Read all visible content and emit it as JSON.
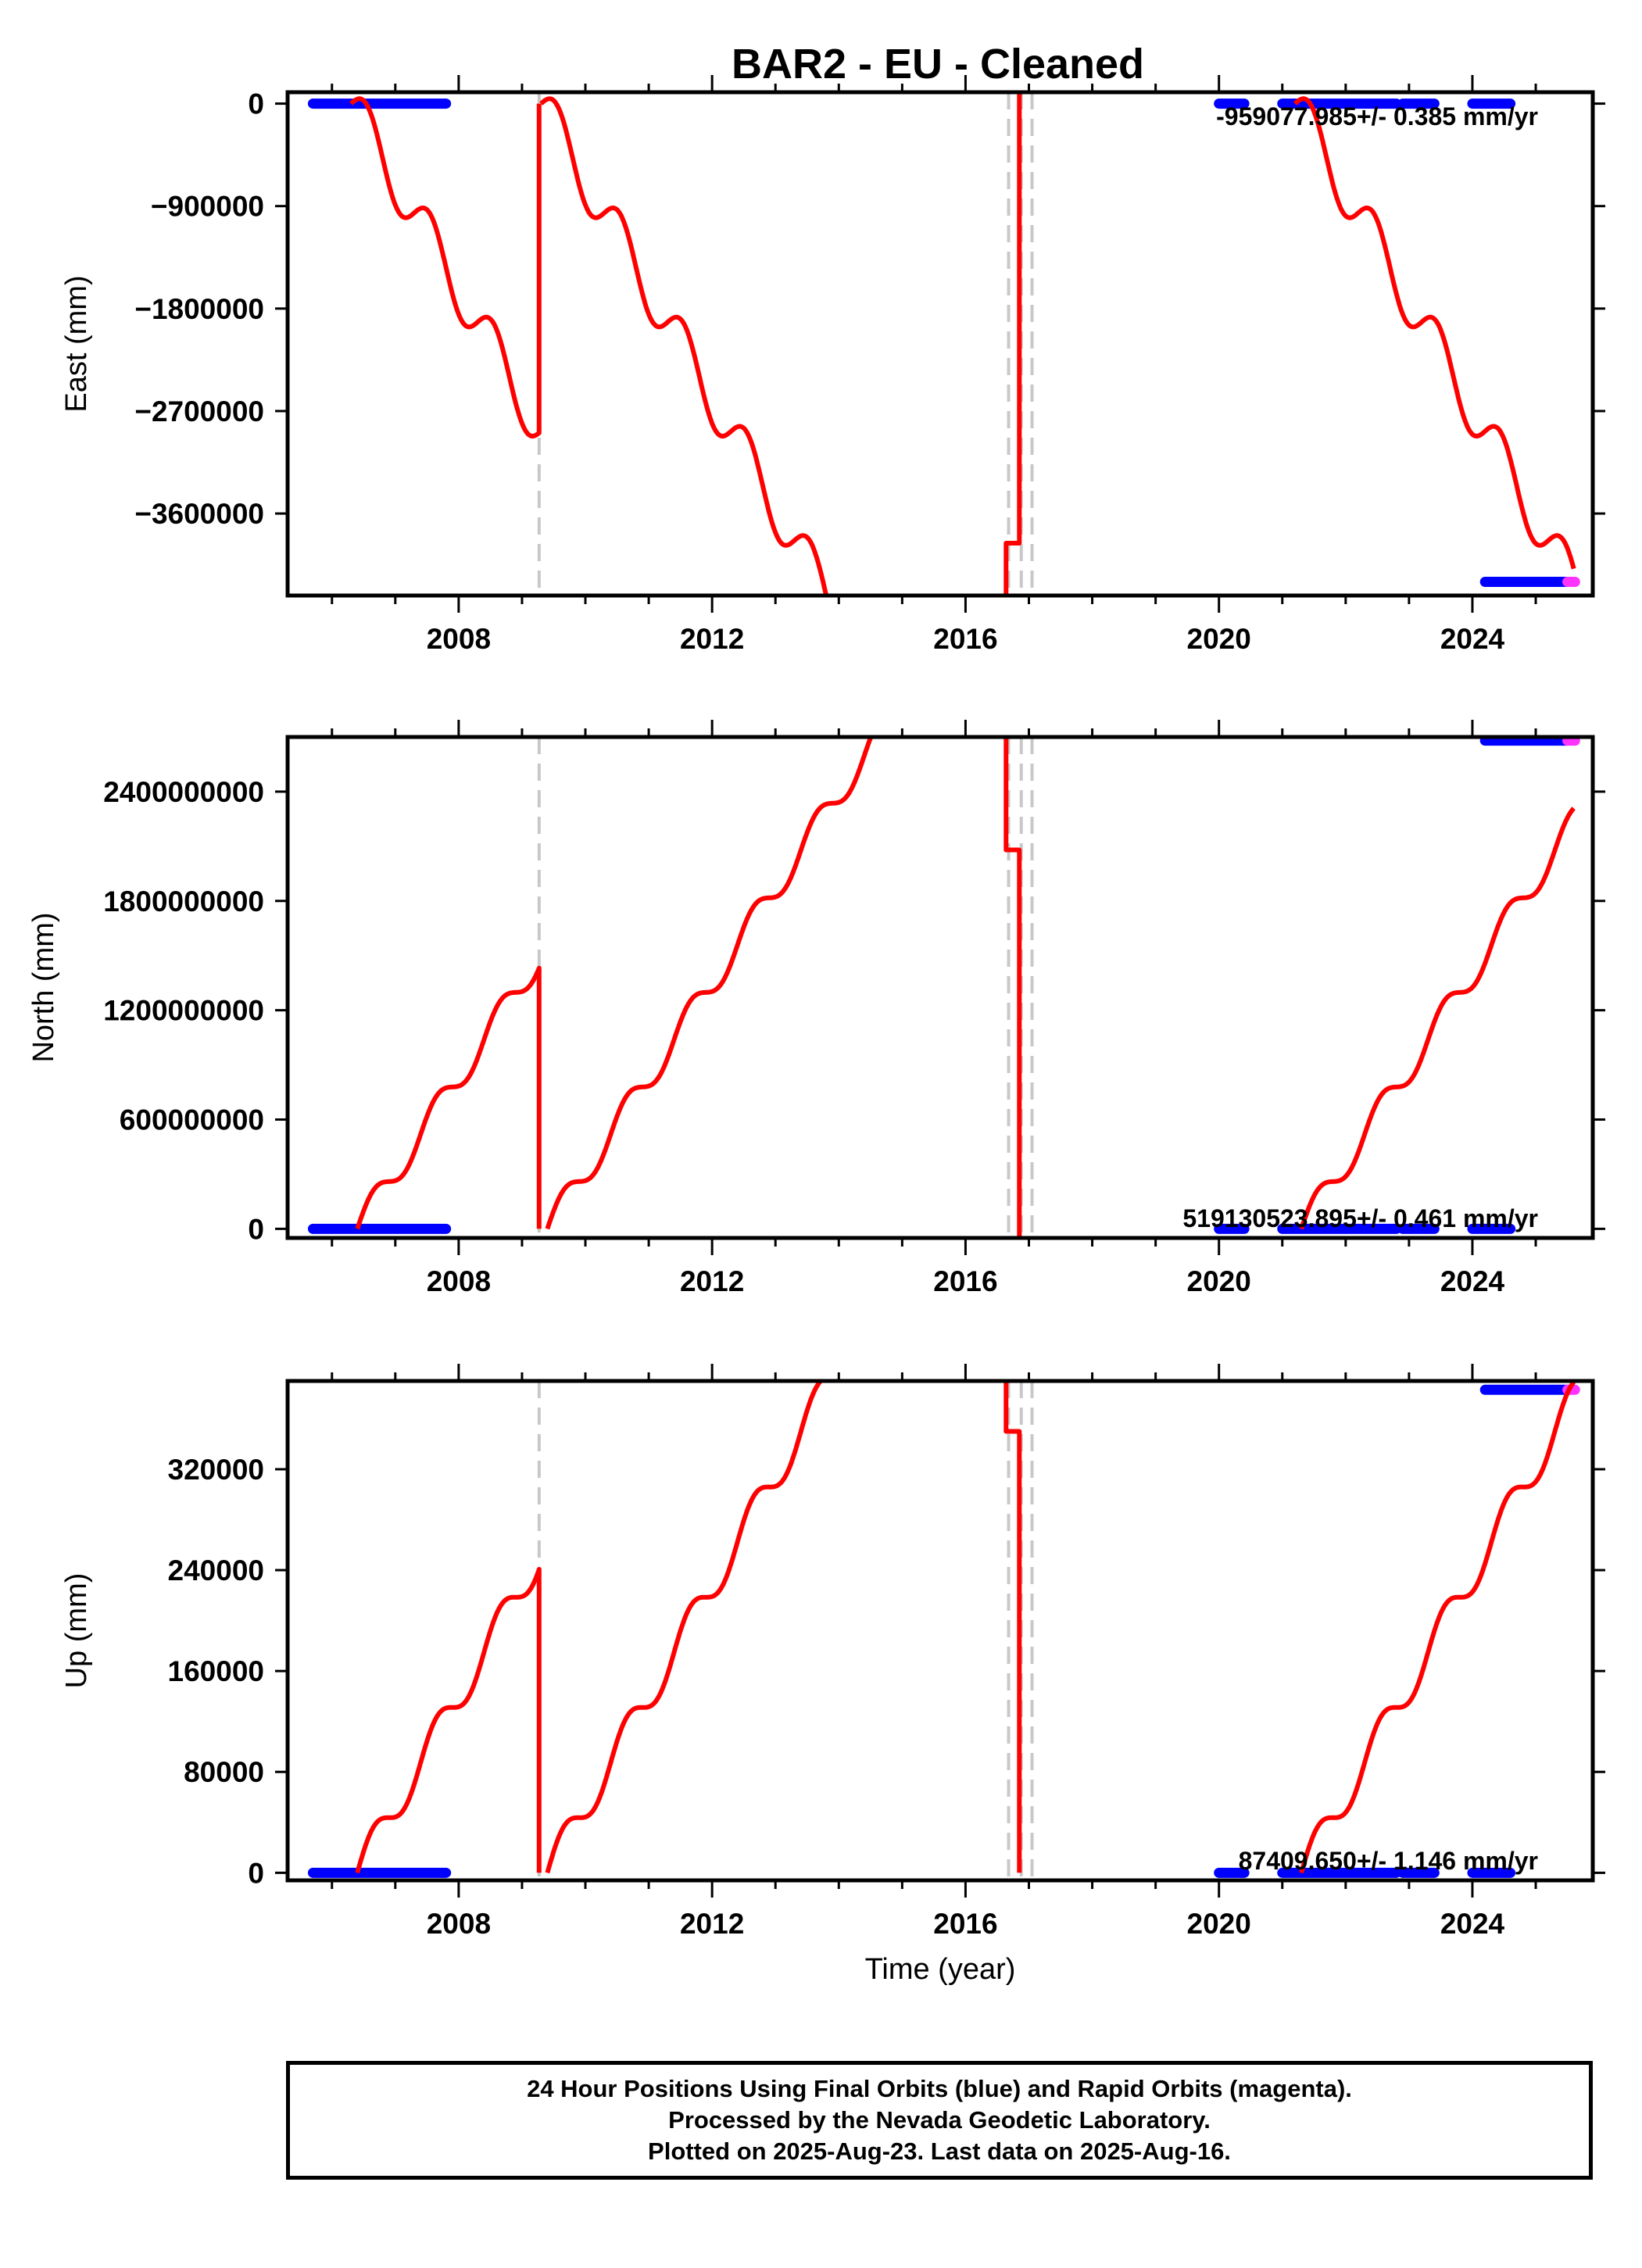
{
  "figure": {
    "title": "BAR2  - EU - Cleaned",
    "xlabel": "Time (year)",
    "footer": [
      "24 Hour Positions Using Final Orbits (blue) and Rapid Orbits (magenta).",
      "Processed by the Nevada Geodetic Laboratory.",
      "Plotted on 2025-Aug-23. Last data on 2025-Aug-16."
    ]
  },
  "colors": {
    "final_orbits": "#0000ff",
    "rapid_orbits": "#ff33ff",
    "model": "#ff0000",
    "equipment_change": "#c8c8c8"
  },
  "chart_data": [
    {
      "type": "scatter",
      "panel": "east",
      "ylabel": "East (mm)",
      "rate_text": "-959077.985+/- 0.385 mm/yr",
      "xlim": [
        2005.3,
        2025.9
      ],
      "ylim": [
        -4320000,
        100000
      ],
      "x_ticks": [
        2008,
        2012,
        2016,
        2020,
        2024
      ],
      "x_tick_labels": [
        "2008",
        "2012",
        "2016",
        "2020",
        "2024"
      ],
      "y_ticks": [
        0,
        -900000,
        -1800000,
        -2700000,
        -3600000
      ],
      "y_tick_labels": [
        "0",
        "−900000",
        "−1800000",
        "−2700000",
        "−3600000"
      ],
      "offset_lines": [
        2009.27,
        2016.68,
        2016.88,
        2017.05
      ],
      "final_orbit_segments": [
        {
          "x": [
            2005.7,
            2007.8
          ],
          "y": [
            0,
            0
          ]
        },
        {
          "x": [
            2020.0,
            2020.4
          ],
          "y": [
            0,
            0
          ]
        },
        {
          "x": [
            2021.0,
            2022.8
          ],
          "y": [
            0,
            0
          ]
        },
        {
          "x": [
            2022.9,
            2023.4
          ],
          "y": [
            0,
            0
          ]
        },
        {
          "x": [
            2024.0,
            2024.6
          ],
          "y": [
            0,
            0
          ]
        },
        {
          "x": [
            2024.2,
            2025.5
          ],
          "y": [
            -4200000,
            -4200000
          ]
        }
      ],
      "rapid_orbit_segments": [
        {
          "x": [
            2025.5,
            2025.62
          ],
          "y": [
            -4200000,
            -4200000
          ]
        }
      ],
      "model_segments": [
        {
          "trend": -959078,
          "seasonal": 230000,
          "x0": 2006.3,
          "y0": 0,
          "x": [
            2006.3,
            2009.27
          ]
        },
        {
          "trend": -959078,
          "seasonal": 230000,
          "x0": 2009.3,
          "y0": 0,
          "x": [
            2009.3,
            2014.2
          ]
        },
        {
          "x": [
            2016.64,
            2016.64,
            2016.85,
            2016.85
          ],
          "y": [
            -4320000,
            -3860000,
            -3860000,
            100000
          ]
        },
        {
          "trend": -959078,
          "seasonal": 230000,
          "x0": 2021.2,
          "y0": 0,
          "x": [
            2021.2,
            2025.6
          ]
        }
      ]
    },
    {
      "type": "scatter",
      "panel": "north",
      "ylabel": "North (mm)",
      "rate_text": "519130523.895+/- 0.461 mm/yr",
      "xlim": [
        2005.3,
        2025.9
      ],
      "ylim": [
        -50000000,
        2700000000
      ],
      "x_ticks": [
        2008,
        2012,
        2016,
        2020,
        2024
      ],
      "x_tick_labels": [
        "2008",
        "2012",
        "2016",
        "2020",
        "2024"
      ],
      "y_ticks": [
        0,
        600000000,
        1200000000,
        1800000000,
        2400000000
      ],
      "y_tick_labels": [
        "0",
        "600000000",
        "1200000000",
        "1800000000",
        "2400000000"
      ],
      "offset_lines": [
        2009.27,
        2016.68,
        2016.88,
        2017.05
      ],
      "final_orbit_segments": [
        {
          "x": [
            2005.7,
            2007.8
          ],
          "y": [
            0,
            0
          ]
        },
        {
          "x": [
            2020.0,
            2020.4
          ],
          "y": [
            0,
            0
          ]
        },
        {
          "x": [
            2021.0,
            2022.8
          ],
          "y": [
            0,
            0
          ]
        },
        {
          "x": [
            2022.9,
            2023.4
          ],
          "y": [
            0,
            0
          ]
        },
        {
          "x": [
            2024.0,
            2024.6
          ],
          "y": [
            0,
            0
          ]
        },
        {
          "x": [
            2024.2,
            2025.5
          ],
          "y": [
            2680000000,
            2680000000
          ]
        }
      ],
      "rapid_orbit_segments": [
        {
          "x": [
            2025.5,
            2025.62
          ],
          "y": [
            2680000000,
            2680000000
          ]
        }
      ],
      "model_segments": [
        {
          "trend": 519130524,
          "seasonal": 80000000,
          "x0": 2006.4,
          "y0": 0,
          "x": [
            2006.4,
            2009.27
          ]
        },
        {
          "trend": 519130524,
          "seasonal": 80000000,
          "x0": 2009.4,
          "y0": 0,
          "x": [
            2009.4,
            2015.0
          ]
        },
        {
          "x": [
            2016.64,
            2016.64,
            2016.85,
            2016.85
          ],
          "y": [
            2700000000,
            2080000000,
            2080000000,
            -50000000
          ]
        },
        {
          "trend": 519130524,
          "seasonal": 80000000,
          "x0": 2021.3,
          "y0": 0,
          "x": [
            2021.3,
            2025.6
          ]
        }
      ]
    },
    {
      "type": "scatter",
      "panel": "up",
      "ylabel": "Up (mm)",
      "rate_text": "87409.650+/- 1.146 mm/yr",
      "xlim": [
        2005.3,
        2025.9
      ],
      "ylim": [
        -6000,
        390000
      ],
      "x_ticks": [
        2008,
        2012,
        2016,
        2020,
        2024
      ],
      "x_tick_labels": [
        "2008",
        "2012",
        "2016",
        "2020",
        "2024"
      ],
      "y_ticks": [
        0,
        80000,
        160000,
        240000,
        320000
      ],
      "y_tick_labels": [
        "0",
        "80000",
        "160000",
        "240000",
        "320000"
      ],
      "offset_lines": [
        2009.27,
        2016.68,
        2016.88,
        2017.05
      ],
      "final_orbit_segments": [
        {
          "x": [
            2005.7,
            2007.8
          ],
          "y": [
            0,
            0
          ]
        },
        {
          "x": [
            2020.0,
            2020.4
          ],
          "y": [
            0,
            0
          ]
        },
        {
          "x": [
            2021.0,
            2022.8
          ],
          "y": [
            0,
            0
          ]
        },
        {
          "x": [
            2022.9,
            2023.4
          ],
          "y": [
            0,
            0
          ]
        },
        {
          "x": [
            2024.0,
            2024.6
          ],
          "y": [
            0,
            0
          ]
        },
        {
          "x": [
            2024.2,
            2025.5
          ],
          "y": [
            383000,
            383000
          ]
        }
      ],
      "rapid_orbit_segments": [
        {
          "x": [
            2025.5,
            2025.62
          ],
          "y": [
            383000,
            383000
          ]
        }
      ],
      "model_segments": [
        {
          "trend": 87410,
          "seasonal": 14000,
          "x0": 2006.4,
          "y0": 0,
          "x": [
            2006.4,
            2009.27
          ]
        },
        {
          "trend": 87410,
          "seasonal": 14000,
          "x0": 2009.4,
          "y0": 0,
          "x": [
            2009.4,
            2014.25
          ]
        },
        {
          "x": [
            2016.64,
            2016.64,
            2016.85,
            2016.85
          ],
          "y": [
            390000,
            350000,
            350000,
            0
          ]
        },
        {
          "trend": 87410,
          "seasonal": 14000,
          "x0": 2021.3,
          "y0": 0,
          "x": [
            2021.3,
            2025.6
          ]
        }
      ]
    }
  ]
}
